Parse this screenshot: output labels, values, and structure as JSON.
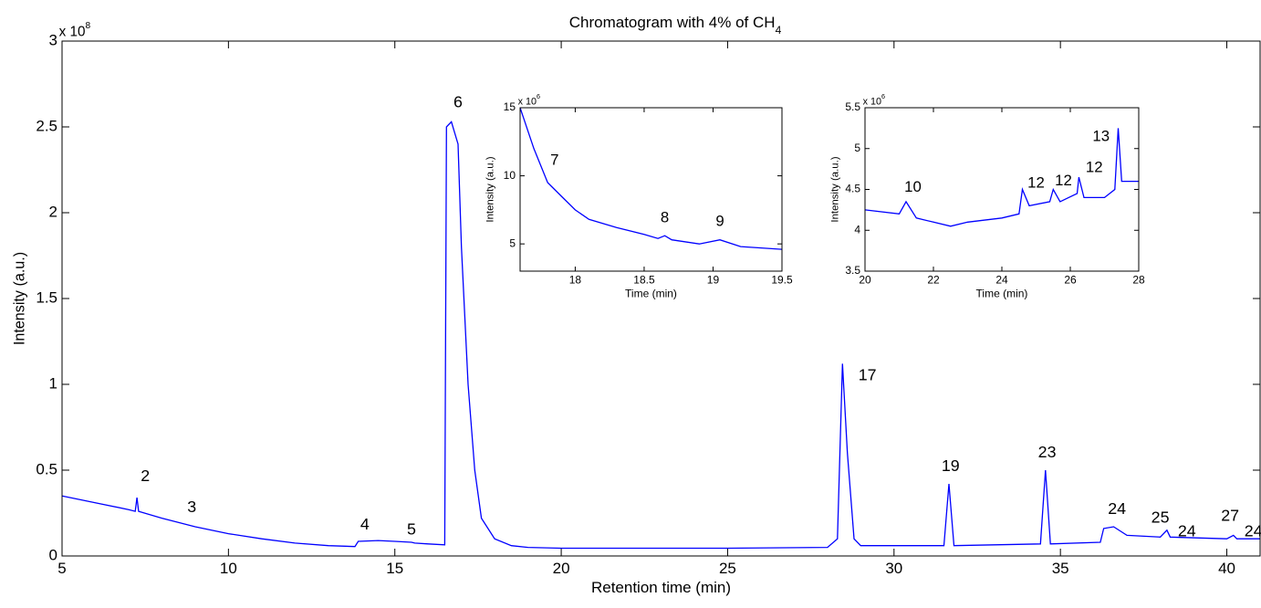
{
  "chart_data": [
    {
      "type": "line",
      "title": "Chromatogram with 4% of CH",
      "title_subscript": "4",
      "xlabel": "Retention time (min)",
      "ylabel": "Intensity (a.u.)",
      "exponent": {
        "base": "x 10",
        "power": "8"
      },
      "xlim": [
        5,
        41
      ],
      "ylim": [
        0,
        3
      ],
      "xticks": [
        5,
        10,
        15,
        20,
        25,
        30,
        35,
        40
      ],
      "yticks": [
        0,
        0.5,
        1,
        1.5,
        2,
        2.5,
        3
      ],
      "series": [
        {
          "color": "#0000ff",
          "x": [
            5,
            6,
            7,
            7.2,
            7.25,
            7.3,
            8,
            9,
            10,
            11,
            12,
            13,
            13.8,
            13.9,
            14.5,
            15,
            15.5,
            15.6,
            16,
            16.5,
            16.55,
            16.7,
            16.9,
            17.0,
            17.2,
            17.4,
            17.6,
            18,
            18.5,
            19,
            20,
            25,
            28,
            28.3,
            28.45,
            28.6,
            28.8,
            29,
            31.5,
            31.65,
            31.8,
            34.4,
            34.55,
            34.7,
            36.2,
            36.3,
            36.6,
            37,
            38,
            38.2,
            38.3,
            40,
            40.2,
            40.3,
            41
          ],
          "values": [
            0.35,
            0.31,
            0.27,
            0.26,
            0.34,
            0.26,
            0.22,
            0.17,
            0.13,
            0.1,
            0.075,
            0.06,
            0.055,
            0.085,
            0.09,
            0.085,
            0.08,
            0.075,
            0.07,
            0.065,
            2.5,
            2.53,
            2.4,
            1.8,
            1.0,
            0.5,
            0.22,
            0.1,
            0.06,
            0.05,
            0.045,
            0.045,
            0.05,
            0.1,
            1.12,
            0.6,
            0.1,
            0.06,
            0.06,
            0.42,
            0.06,
            0.07,
            0.5,
            0.07,
            0.08,
            0.16,
            0.17,
            0.12,
            0.11,
            0.15,
            0.11,
            0.1,
            0.12,
            0.1,
            0.1
          ]
        }
      ],
      "annotations": [
        {
          "text": "2",
          "x": 7.5,
          "y": 0.46
        },
        {
          "text": "3",
          "x": 8.9,
          "y": 0.28
        },
        {
          "text": "4",
          "x": 14.1,
          "y": 0.18
        },
        {
          "text": "5",
          "x": 15.5,
          "y": 0.15
        },
        {
          "text": "6",
          "x": 16.9,
          "y": 2.64
        },
        {
          "text": "17",
          "x": 29.2,
          "y": 1.05
        },
        {
          "text": "19",
          "x": 31.7,
          "y": 0.52
        },
        {
          "text": "23",
          "x": 34.6,
          "y": 0.6
        },
        {
          "text": "24",
          "x": 36.7,
          "y": 0.27
        },
        {
          "text": "25",
          "x": 38,
          "y": 0.22
        },
        {
          "text": "24",
          "x": 38.8,
          "y": 0.14
        },
        {
          "text": "27",
          "x": 40.1,
          "y": 0.23
        },
        {
          "text": "24",
          "x": 40.8,
          "y": 0.14
        }
      ]
    },
    {
      "type": "line",
      "xlabel": "Time (min)",
      "ylabel": "Intensity (a.u.)",
      "exponent": {
        "base": "x 10",
        "power": "6"
      },
      "xlim": [
        17.6,
        19.5
      ],
      "ylim": [
        3,
        15
      ],
      "xticks": [
        18,
        18.5,
        19,
        19.5
      ],
      "yticks": [
        5,
        10,
        15
      ],
      "series": [
        {
          "color": "#0000ff",
          "x": [
            17.6,
            17.7,
            17.8,
            17.9,
            18.0,
            18.1,
            18.3,
            18.5,
            18.6,
            18.65,
            18.7,
            18.9,
            19.05,
            19.2,
            19.5
          ],
          "values": [
            15,
            12,
            9.5,
            8.5,
            7.5,
            6.8,
            6.2,
            5.7,
            5.4,
            5.6,
            5.3,
            5.0,
            5.3,
            4.8,
            4.6
          ]
        }
      ],
      "annotations": [
        {
          "text": "7",
          "x": 17.85,
          "y": 11.1
        },
        {
          "text": "8",
          "x": 18.65,
          "y": 6.9
        },
        {
          "text": "9",
          "x": 19.05,
          "y": 6.6
        }
      ]
    },
    {
      "type": "line",
      "xlabel": "Time (min)",
      "ylabel": "Intensity (a.u.)",
      "exponent": {
        "base": "x 10",
        "power": "6"
      },
      "xlim": [
        20,
        28
      ],
      "ylim": [
        3.5,
        5.5
      ],
      "xticks": [
        20,
        22,
        24,
        26,
        28
      ],
      "yticks": [
        3.5,
        4,
        4.5,
        5,
        5.5
      ],
      "series": [
        {
          "color": "#0000ff",
          "x": [
            20,
            21,
            21.2,
            21.5,
            22,
            22.5,
            23,
            24,
            24.5,
            24.6,
            24.8,
            25.4,
            25.5,
            25.7,
            26.2,
            26.25,
            26.4,
            27,
            27.3,
            27.4,
            27.5,
            28
          ],
          "values": [
            4.25,
            4.2,
            4.35,
            4.15,
            4.1,
            4.05,
            4.1,
            4.15,
            4.2,
            4.5,
            4.3,
            4.35,
            4.5,
            4.35,
            4.45,
            4.65,
            4.4,
            4.4,
            4.5,
            5.25,
            4.6,
            4.6
          ]
        }
      ],
      "annotations": [
        {
          "text": "10",
          "x": 21.4,
          "y": 4.52
        },
        {
          "text": "12",
          "x": 25.0,
          "y": 4.57
        },
        {
          "text": "12",
          "x": 25.8,
          "y": 4.6
        },
        {
          "text": "12",
          "x": 26.7,
          "y": 4.76
        },
        {
          "text": "13",
          "x": 26.9,
          "y": 5.14
        }
      ]
    }
  ]
}
